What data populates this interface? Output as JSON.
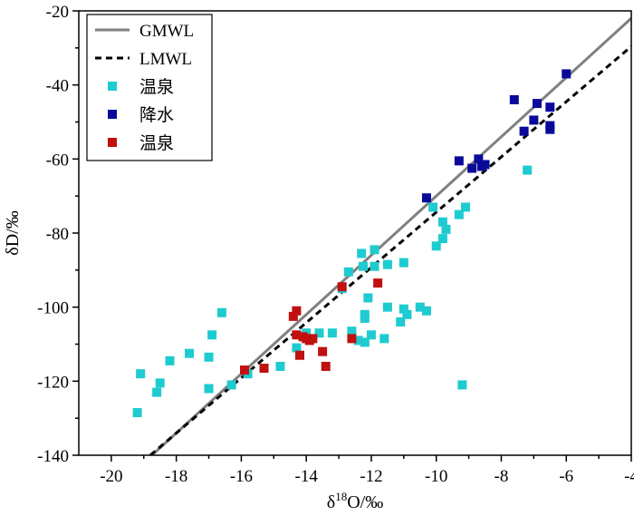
{
  "chart_data": {
    "type": "scatter",
    "title": "",
    "xlabel": "δ18O/‰",
    "xlabel_parts": {
      "prefix": "δ",
      "sup": "18",
      "suffix": "O/‰"
    },
    "ylabel": "δD/‰",
    "xlim": [
      -21,
      -4
    ],
    "ylim": [
      -140,
      -20
    ],
    "x_ticks": [
      -20,
      -18,
      -16,
      -14,
      -12,
      -10,
      -8,
      -6,
      -4
    ],
    "y_ticks": [
      -140,
      -120,
      -100,
      -80,
      -60,
      -40,
      -20
    ],
    "grid": false,
    "legend_position": "top-left",
    "lines": [
      {
        "name": "GMWL",
        "color": "#808080",
        "style": "solid",
        "points": [
          [
            -18.7,
            -139.6
          ],
          [
            -4,
            -22
          ]
        ]
      },
      {
        "name": "LMWL",
        "color": "#000000",
        "style": "dashed",
        "points": [
          [
            -18.8,
            -140
          ],
          [
            -4,
            -29.6
          ]
        ]
      }
    ],
    "series": [
      {
        "name": "温泉",
        "color": "#1ecbd0",
        "points": [
          [
            -19.2,
            -128.5
          ],
          [
            -19.1,
            -118
          ],
          [
            -18.6,
            -123
          ],
          [
            -18.5,
            -120.5
          ],
          [
            -18.2,
            -114.5
          ],
          [
            -17.6,
            -112.5
          ],
          [
            -17.0,
            -113.5
          ],
          [
            -17.0,
            -122
          ],
          [
            -16.9,
            -107.5
          ],
          [
            -16.6,
            -101.5
          ],
          [
            -16.3,
            -121
          ],
          [
            -15.8,
            -118
          ],
          [
            -14.8,
            -116
          ],
          [
            -14.3,
            -111
          ],
          [
            -14.0,
            -107
          ],
          [
            -13.6,
            -107
          ],
          [
            -13.2,
            -107
          ],
          [
            -12.9,
            -95
          ],
          [
            -12.7,
            -90.5
          ],
          [
            -12.6,
            -106.5
          ],
          [
            -12.4,
            -109
          ],
          [
            -12.3,
            -85.5
          ],
          [
            -12.25,
            -89
          ],
          [
            -12.2,
            -103
          ],
          [
            -12.2,
            -102
          ],
          [
            -12.2,
            -109.5
          ],
          [
            -12.1,
            -97.5
          ],
          [
            -12.0,
            -107.5
          ],
          [
            -11.9,
            -89
          ],
          [
            -11.9,
            -84.5
          ],
          [
            -11.6,
            -108.5
          ],
          [
            -11.5,
            -100
          ],
          [
            -11.5,
            -88.5
          ],
          [
            -11.1,
            -104
          ],
          [
            -11.0,
            -100.5
          ],
          [
            -11.0,
            -88
          ],
          [
            -10.9,
            -102
          ],
          [
            -10.5,
            -100
          ],
          [
            -10.3,
            -101
          ],
          [
            -10.1,
            -73
          ],
          [
            -10.0,
            -83.5
          ],
          [
            -9.8,
            -81.5
          ],
          [
            -9.8,
            -77
          ],
          [
            -9.7,
            -79
          ],
          [
            -9.3,
            -75
          ],
          [
            -9.2,
            -121
          ],
          [
            -9.1,
            -73
          ],
          [
            -7.2,
            -63
          ]
        ]
      },
      {
        "name": "降水",
        "color": "#0a0a9a",
        "points": [
          [
            -10.3,
            -70.5
          ],
          [
            -9.3,
            -60.5
          ],
          [
            -8.9,
            -62.5
          ],
          [
            -8.7,
            -60
          ],
          [
            -8.6,
            -62
          ],
          [
            -8.5,
            -61.5
          ],
          [
            -7.6,
            -44
          ],
          [
            -7.3,
            -52.5
          ],
          [
            -7.0,
            -49.5
          ],
          [
            -6.9,
            -45
          ],
          [
            -6.5,
            -46
          ],
          [
            -6.5,
            -51
          ],
          [
            -6.5,
            -52
          ],
          [
            -6.0,
            -37
          ]
        ]
      },
      {
        "name": "温泉",
        "color": "#c01010",
        "points": [
          [
            -15.9,
            -117
          ],
          [
            -15.3,
            -116.5
          ],
          [
            -14.4,
            -102.5
          ],
          [
            -14.3,
            -101
          ],
          [
            -14.3,
            -107.5
          ],
          [
            -14.2,
            -113
          ],
          [
            -14.1,
            -108
          ],
          [
            -14.0,
            -108.5
          ],
          [
            -13.9,
            -109
          ],
          [
            -13.8,
            -108.5
          ],
          [
            -13.5,
            -112
          ],
          [
            -13.4,
            -116
          ],
          [
            -12.9,
            -94.5
          ],
          [
            -12.6,
            -108.5
          ],
          [
            -11.8,
            -93.5
          ]
        ]
      }
    ]
  }
}
